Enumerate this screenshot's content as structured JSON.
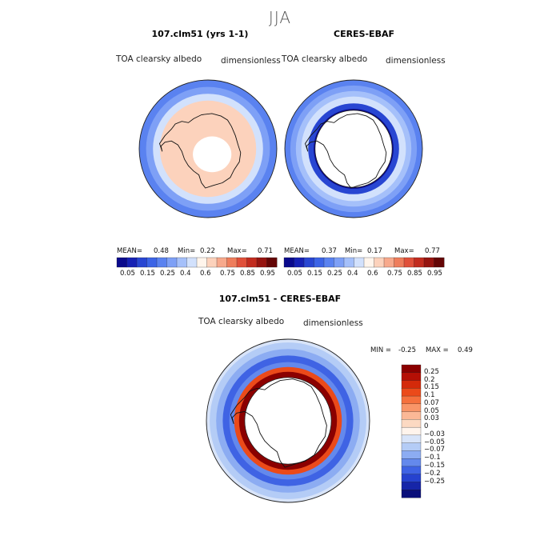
{
  "suptitle": "JJA",
  "panels": [
    {
      "title": "107.clm51 (yrs 1-1)",
      "left_label": "TOA clearsky albedo",
      "right_label": "dimensionless",
      "stats": {
        "mean_label": "MEAN=",
        "mean": "0.48",
        "min_label": "Min=",
        "min": "0.22",
        "max_label": "Max=",
        "max": "0.71"
      }
    },
    {
      "title": "CERES-EBAF",
      "left_label": "TOA clearsky albedo",
      "right_label": "dimensionless",
      "stats": {
        "mean_label": "MEAN=",
        "mean": "0.37",
        "min_label": "Min=",
        "min": "0.17",
        "max_label": "Max=",
        "max": "0.77"
      }
    },
    {
      "title": "107.clm51 - CERES-EBAF",
      "left_label": "TOA clearsky albedo",
      "right_label": "dimensionless",
      "stats": {
        "min_label": "MIN =",
        "min": "-0.25",
        "max_label": "MAX =",
        "max": "0.49"
      }
    }
  ],
  "chart_data": [
    {
      "type": "heatmap",
      "projection": "south polar stereographic",
      "title": "107.clm51 (yrs 1-1)",
      "variable": "TOA clearsky albedo",
      "units": "dimensionless",
      "mean": 0.48,
      "min": 0.22,
      "max": 0.71,
      "colorbar": {
        "ticks": [
          "0.05",
          "0.15",
          "0.25",
          "0.4",
          "0.6",
          "0.75",
          "0.85",
          "0.95"
        ],
        "levels": [
          0.05,
          0.1,
          0.15,
          0.2,
          0.25,
          0.3,
          0.4,
          0.5,
          0.6,
          0.7,
          0.75,
          0.8,
          0.85,
          0.9,
          0.95
        ],
        "colors": [
          "#0a0a8c",
          "#1621b4",
          "#2846d2",
          "#3c64e6",
          "#5a82f0",
          "#7ea0f6",
          "#a5c0fa",
          "#d2e1fc",
          "#fff5ec",
          "#fcd2bc",
          "#f7a98c",
          "#ee7d5c",
          "#e0503a",
          "#c22c1f",
          "#961410",
          "#640505"
        ]
      },
      "rings": [
        {
          "r": 1.0,
          "value_band": 4
        },
        {
          "r": 0.9,
          "value_band": 5
        },
        {
          "r": 0.8,
          "value_band": 7
        },
        {
          "r": 0.7,
          "value_band": 9
        },
        {
          "r": 0.3,
          "value_band": 8
        }
      ]
    },
    {
      "type": "heatmap",
      "projection": "south polar stereographic",
      "title": "CERES-EBAF",
      "variable": "TOA clearsky albedo",
      "units": "dimensionless",
      "mean": 0.37,
      "min": 0.17,
      "max": 0.77,
      "colorbar": {
        "ticks": [
          "0.05",
          "0.15",
          "0.25",
          "0.4",
          "0.6",
          "0.75",
          "0.85",
          "0.95"
        ]
      },
      "rings": [
        {
          "r": 1.0,
          "value_band": 4
        },
        {
          "r": 0.92,
          "value_band": 5
        },
        {
          "r": 0.84,
          "value_band": 6
        },
        {
          "r": 0.76,
          "value_band": 7
        },
        {
          "r": 0.66,
          "value_band": 2
        },
        {
          "r": 0.58,
          "value_band": 0
        }
      ]
    },
    {
      "type": "heatmap",
      "projection": "south polar stereographic",
      "title": "107.clm51 - CERES-EBAF",
      "variable": "TOA clearsky albedo",
      "units": "dimensionless",
      "min": -0.25,
      "max": 0.49,
      "colorbar": {
        "ticks": [
          "0.25",
          "0.2",
          "0.15",
          "0.1",
          "0.07",
          "0.05",
          "0.03",
          "0",
          "−0.03",
          "−0.05",
          "−0.07",
          "−0.1",
          "−0.15",
          "−0.2",
          "−0.25"
        ],
        "colors": [
          "#8b0000",
          "#b50f05",
          "#d42a0a",
          "#eb4a1a",
          "#f5703d",
          "#f99568",
          "#fbb896",
          "#fcd9c2",
          "#fff4ec",
          "#d8e4f9",
          "#b4ccf6",
          "#8cacf2",
          "#6489ec",
          "#3f63e4",
          "#2642cf",
          "#1625a8",
          "#0a0f7a"
        ]
      },
      "rings": [
        {
          "r": 1.0,
          "value_band": 9
        },
        {
          "r": 0.96,
          "value_band": 10
        },
        {
          "r": 0.88,
          "value_band": 11
        },
        {
          "r": 0.8,
          "value_band": 13
        },
        {
          "r": 0.72,
          "value_band": 12
        },
        {
          "r": 0.66,
          "value_band": 3
        },
        {
          "r": 0.6,
          "value_band": 0
        }
      ]
    }
  ]
}
